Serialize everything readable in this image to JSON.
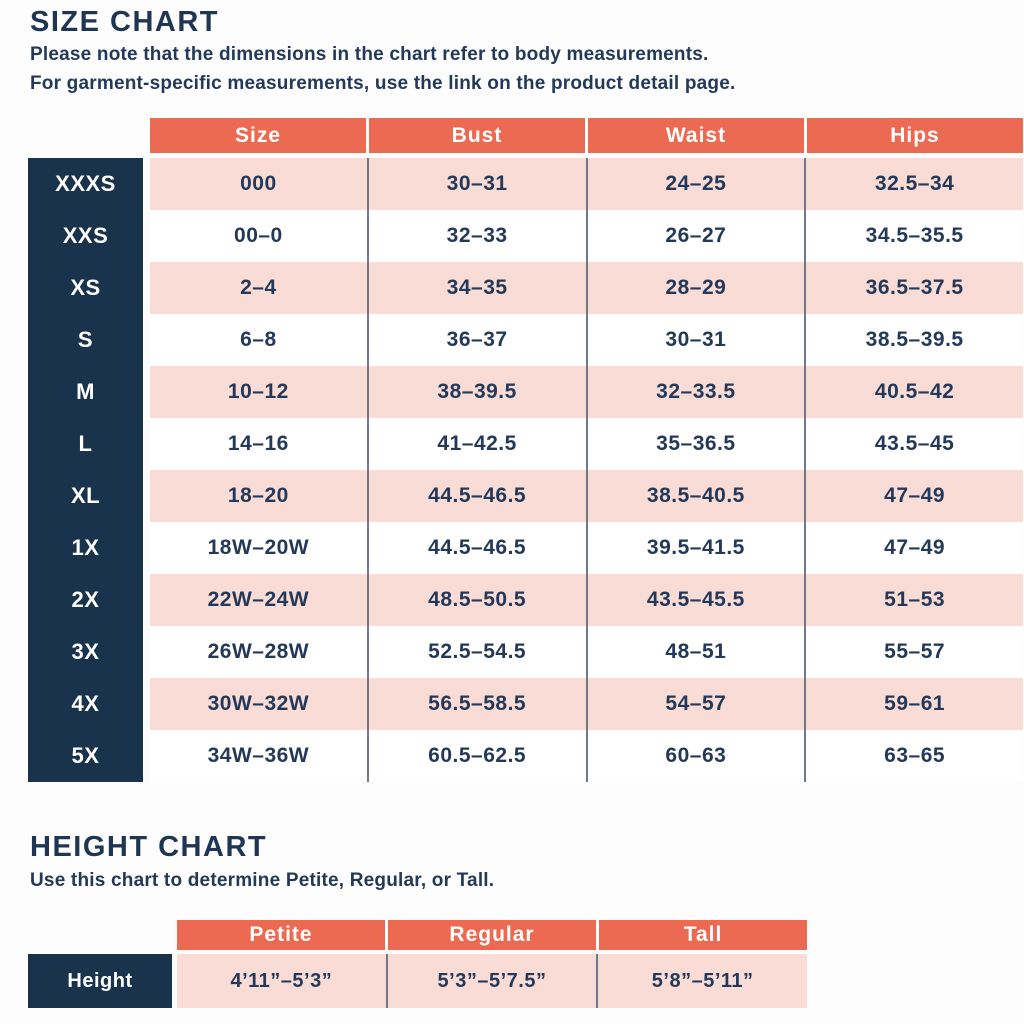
{
  "colors": {
    "header_coral": "#ED6A52",
    "row_pink": "#F8DCD5",
    "row_white": "#FFFFFF",
    "label_navy": "#1A334C",
    "text_navy": "#24395A",
    "divider_gray": "#6F7884"
  },
  "chart_data": [
    {
      "type": "table",
      "title": "SIZE CHART",
      "notes": [
        "Please note that the dimensions in the chart refer to body measurements.",
        "For garment-specific measurements, use the link on the product detail page."
      ],
      "columns": [
        "Size",
        "Bust",
        "Waist",
        "Hips"
      ],
      "row_labels": [
        "XXXS",
        "XXS",
        "XS",
        "S",
        "M",
        "L",
        "XL",
        "1X",
        "2X",
        "3X",
        "4X",
        "5X"
      ],
      "rows": [
        [
          "000",
          "30–31",
          "24–25",
          "32.5–34"
        ],
        [
          "00–0",
          "32–33",
          "26–27",
          "34.5–35.5"
        ],
        [
          "2–4",
          "34–35",
          "28–29",
          "36.5–37.5"
        ],
        [
          "6–8",
          "36–37",
          "30–31",
          "38.5–39.5"
        ],
        [
          "10–12",
          "38–39.5",
          "32–33.5",
          "40.5–42"
        ],
        [
          "14–16",
          "41–42.5",
          "35–36.5",
          "43.5–45"
        ],
        [
          "18–20",
          "44.5–46.5",
          "38.5–40.5",
          "47–49"
        ],
        [
          "18W–20W",
          "44.5–46.5",
          "39.5–41.5",
          "47–49"
        ],
        [
          "22W–24W",
          "48.5–50.5",
          "43.5–45.5",
          "51–53"
        ],
        [
          "26W–28W",
          "52.5–54.5",
          "48–51",
          "55–57"
        ],
        [
          "30W–32W",
          "56.5–58.5",
          "54–57",
          "59–61"
        ],
        [
          "34W–36W",
          "60.5–62.5",
          "60–63",
          "63–65"
        ]
      ]
    },
    {
      "type": "table",
      "title": "HEIGHT CHART",
      "notes": [
        "Use this chart to determine Petite, Regular, or Tall."
      ],
      "columns": [
        "Petite",
        "Regular",
        "Tall"
      ],
      "row_labels": [
        "Height"
      ],
      "rows": [
        [
          "4’11”–5’3”",
          "5’3”–5’7.5”",
          "5’8”–5’11”"
        ]
      ]
    }
  ]
}
